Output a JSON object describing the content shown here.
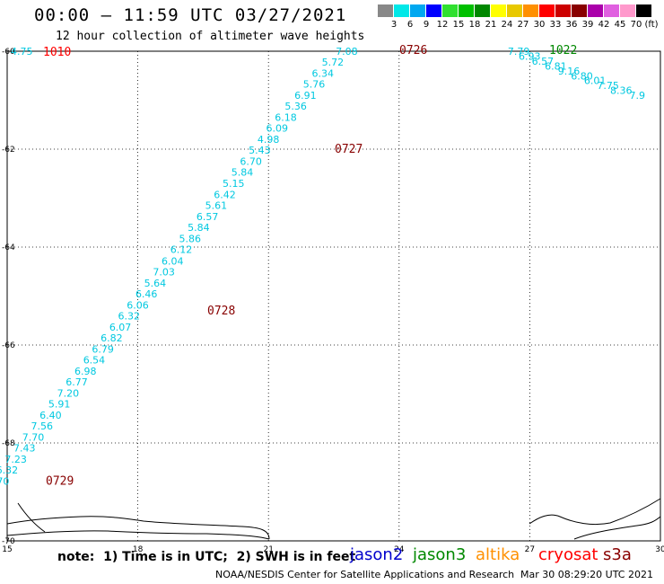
{
  "header": {
    "title": "00:00 – 11:59 UTC 03/27/2021",
    "subtitle": "12 hour collection of altimeter wave heights"
  },
  "color_scale": {
    "unit": "(ft)",
    "labels": [
      "3",
      "6",
      "9",
      "12",
      "15",
      "18",
      "21",
      "24",
      "27",
      "30",
      "33",
      "36",
      "39",
      "42",
      "45",
      "70"
    ],
    "colors": [
      "#888888",
      "#00e8e8",
      "#00a8f0",
      "#0000ff",
      "#30e030",
      "#00c000",
      "#008800",
      "#ffff00",
      "#e8c800",
      "#ff9000",
      "#ff0000",
      "#cc0000",
      "#880000",
      "#aa00aa",
      "#e060e0",
      "#ff99cc",
      "#000000"
    ]
  },
  "map": {
    "lat_labels": [
      "-60",
      "-62",
      "-64",
      "-66",
      "-68",
      "-70"
    ],
    "lon_labels": [
      "15",
      "18",
      "21",
      "24",
      "27",
      "30"
    ],
    "lon_range": [
      15,
      30
    ],
    "lat_range": [
      -60,
      -70
    ]
  },
  "tracks": [
    {
      "name": "track-0726",
      "color": "#00c8e0",
      "label": "0726",
      "label_color": "#880000",
      "label_lon": 23.3,
      "label_lat": -60.05,
      "points": [
        {
          "lon": 23.05,
          "lat": -60.0,
          "v": "7.08"
        },
        {
          "lon": 22.73,
          "lat": -60.22,
          "v": "5.72"
        },
        {
          "lon": 22.5,
          "lat": -60.45,
          "v": "6.34"
        },
        {
          "lon": 22.3,
          "lat": -60.67,
          "v": "5.76"
        },
        {
          "lon": 22.1,
          "lat": -60.9,
          "v": "6.91"
        },
        {
          "lon": 21.88,
          "lat": -61.12,
          "v": "5.36"
        },
        {
          "lon": 21.65,
          "lat": -61.35,
          "v": "6.18"
        },
        {
          "lon": 21.45,
          "lat": -61.57,
          "v": "6.09"
        },
        {
          "lon": 21.25,
          "lat": -61.8,
          "v": "4.98"
        },
        {
          "lon": 21.05,
          "lat": -62.02,
          "v": "5.43"
        },
        {
          "lon": 20.85,
          "lat": -62.25,
          "v": "6.70"
        },
        {
          "lon": 20.65,
          "lat": -62.47,
          "v": "5.84"
        },
        {
          "lon": 20.45,
          "lat": -62.7,
          "v": "5.15"
        },
        {
          "lon": 20.25,
          "lat": -62.93,
          "v": "6.42"
        },
        {
          "lon": 20.05,
          "lat": -63.15,
          "v": "5.61"
        },
        {
          "lon": 19.85,
          "lat": -63.38,
          "v": "6.57"
        },
        {
          "lon": 19.65,
          "lat": -63.6,
          "v": "5.84"
        },
        {
          "lon": 19.45,
          "lat": -63.83,
          "v": "5.86"
        },
        {
          "lon": 19.25,
          "lat": -64.05,
          "v": "6.12"
        },
        {
          "lon": 19.05,
          "lat": -64.28,
          "v": "6.04"
        },
        {
          "lon": 18.85,
          "lat": -64.5,
          "v": "7.03"
        },
        {
          "lon": 18.65,
          "lat": -64.73,
          "v": "5.64"
        },
        {
          "lon": 18.45,
          "lat": -64.95,
          "v": "6.46"
        },
        {
          "lon": 18.25,
          "lat": -65.18,
          "v": "6.06"
        },
        {
          "lon": 18.05,
          "lat": -65.4,
          "v": "6.32"
        },
        {
          "lon": 17.85,
          "lat": -65.63,
          "v": "6.07"
        },
        {
          "lon": 17.65,
          "lat": -65.85,
          "v": "6.82"
        },
        {
          "lon": 17.45,
          "lat": -66.08,
          "v": "6.79"
        },
        {
          "lon": 17.25,
          "lat": -66.3,
          "v": "6.54"
        },
        {
          "lon": 17.05,
          "lat": -66.53,
          "v": "6.98"
        },
        {
          "lon": 16.85,
          "lat": -66.75,
          "v": "6.77"
        },
        {
          "lon": 16.65,
          "lat": -66.98,
          "v": "7.20"
        },
        {
          "lon": 16.45,
          "lat": -67.2,
          "v": "5.91"
        },
        {
          "lon": 16.25,
          "lat": -67.43,
          "v": "6.40"
        },
        {
          "lon": 16.05,
          "lat": -67.65,
          "v": "7.56"
        },
        {
          "lon": 15.85,
          "lat": -67.88,
          "v": "7.70"
        },
        {
          "lon": 15.65,
          "lat": -68.1,
          "v": "7.43"
        },
        {
          "lon": 15.45,
          "lat": -68.33,
          "v": "7.23"
        },
        {
          "lon": 15.25,
          "lat": -68.55,
          "v": "6.32"
        },
        {
          "lon": 15.05,
          "lat": -68.78,
          "v": "4.70"
        }
      ]
    },
    {
      "name": "track-1022",
      "color": "#00c8e0",
      "label": "1022",
      "label_color": "#008800",
      "points": [
        {
          "lon": 27.0,
          "lat": -60.0,
          "v": "7.79"
        },
        {
          "lon": 27.25,
          "lat": -60.1,
          "v": "6.93"
        },
        {
          "lon": 27.55,
          "lat": -60.2,
          "v": "6.57"
        },
        {
          "lon": 27.85,
          "lat": -60.3,
          "v": "6.81"
        },
        {
          "lon": 28.15,
          "lat": -60.4,
          "v": "9.16"
        },
        {
          "lon": 28.45,
          "lat": -60.5,
          "v": "6.80"
        },
        {
          "lon": 28.75,
          "lat": -60.6,
          "v": "6.01"
        },
        {
          "lon": 29.05,
          "lat": -60.7,
          "v": "7.75"
        },
        {
          "lon": 29.35,
          "lat": -60.8,
          "v": "8.36"
        },
        {
          "lon": 29.65,
          "lat": -60.9,
          "v": "7.9"
        }
      ]
    }
  ],
  "time_labels": [
    {
      "text": "1010",
      "color": "#ff0000"
    },
    {
      "text": "0727",
      "color": "#880000"
    },
    {
      "text": "0728",
      "color": "#880000"
    },
    {
      "text": "0729",
      "color": "#880000"
    }
  ],
  "left_edge_value": "4.75",
  "footer": {
    "note": "note:  1) Time is in UTC;  2) SWH is in feet",
    "satellites": [
      {
        "name": "jason2",
        "color": "#0000cc"
      },
      {
        "name": "jason3",
        "color": "#008800"
      },
      {
        "name": "altika",
        "color": "#ff9000"
      },
      {
        "name": "cryosat",
        "color": "#ff0000"
      },
      {
        "name": "s3a",
        "color": "#880000"
      }
    ],
    "credit": "NOAA/NESDIS Center for Satellite Applications and Research",
    "timestamp": "Mar 30 08:29:20 UTC 2021"
  }
}
